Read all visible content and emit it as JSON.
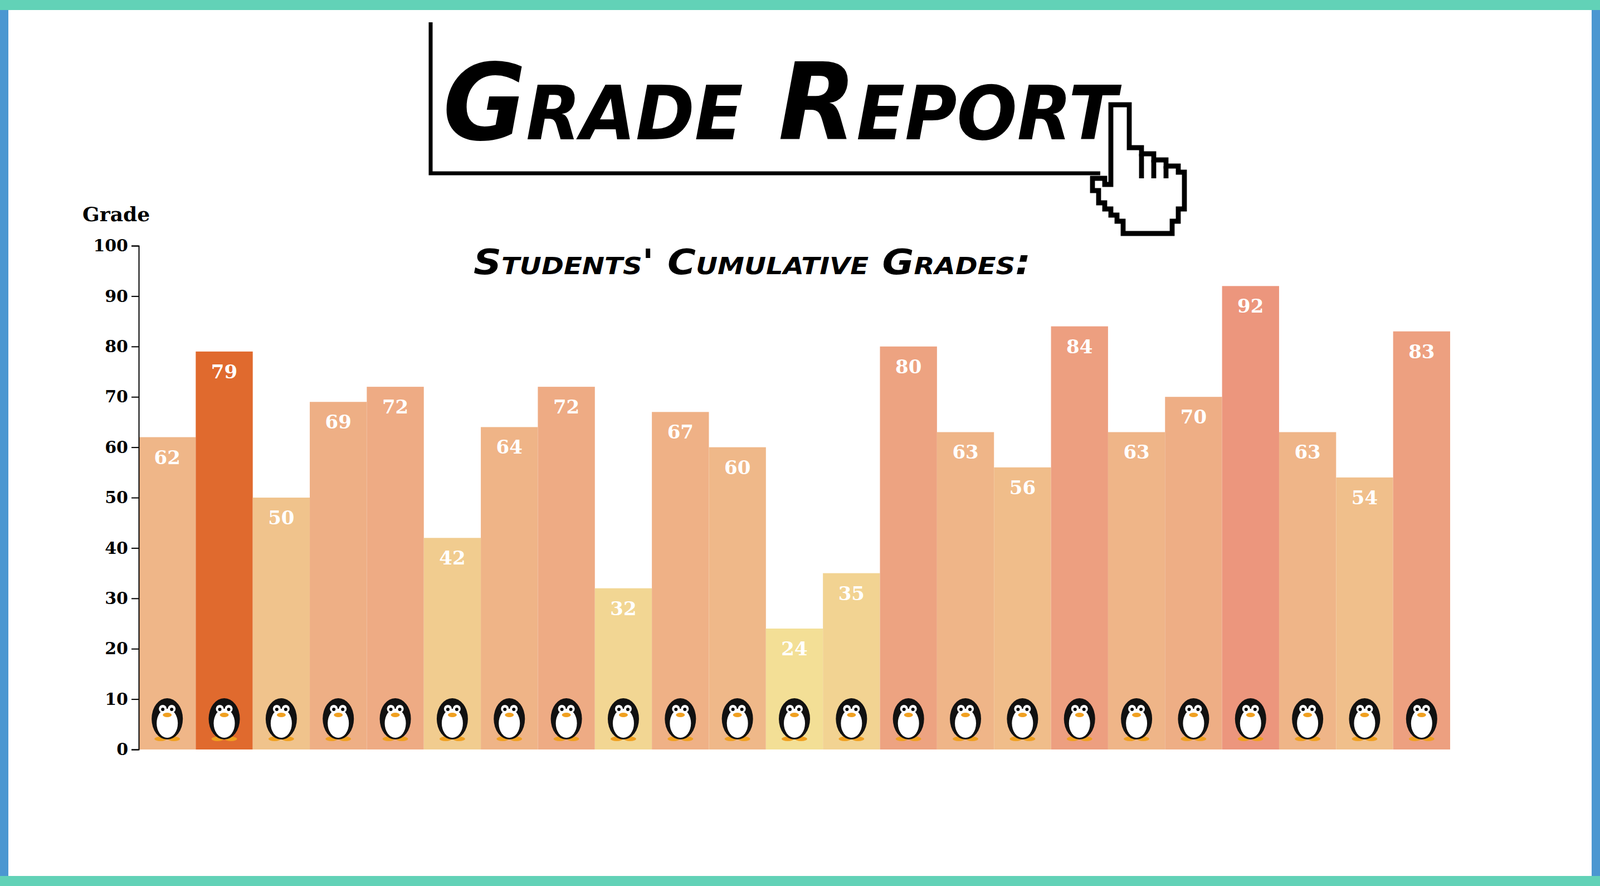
{
  "chart_data": {
    "type": "bar",
    "title": "Grade Report",
    "subtitle": "Students' Cumulative Grades:",
    "y_label": "Grade",
    "categories": [
      null,
      null,
      null,
      null,
      null,
      null,
      null,
      null,
      null,
      null,
      null,
      null,
      null,
      null,
      null,
      null,
      null,
      null,
      null,
      null,
      null,
      null,
      null
    ],
    "values": [
      62,
      79,
      50,
      69,
      72,
      42,
      64,
      72,
      32,
      67,
      60,
      24,
      35,
      80,
      63,
      56,
      84,
      63,
      70,
      92,
      63,
      54,
      83
    ],
    "colors": [
      "#efb688",
      "#e06a2e",
      "#f0c38c",
      "#eeaf85",
      "#eeab84",
      "#f1cc8f",
      "#efb487",
      "#eeab84",
      "#f2d693",
      "#efb186",
      "#efb889",
      "#f3df96",
      "#f2d392",
      "#eda381",
      "#efb588",
      "#f0bd8a",
      "#ed9f80",
      "#efb588",
      "#eeae85",
      "#ec967d",
      "#efb588",
      "#f0bf8b",
      "#eda080"
    ],
    "ylim": [
      0,
      100
    ],
    "yticks": [
      0,
      10,
      20,
      30,
      40,
      50,
      60,
      70,
      80,
      90,
      100
    ],
    "data_labels": true,
    "tick_labels": "y",
    "grid": false
  }
}
